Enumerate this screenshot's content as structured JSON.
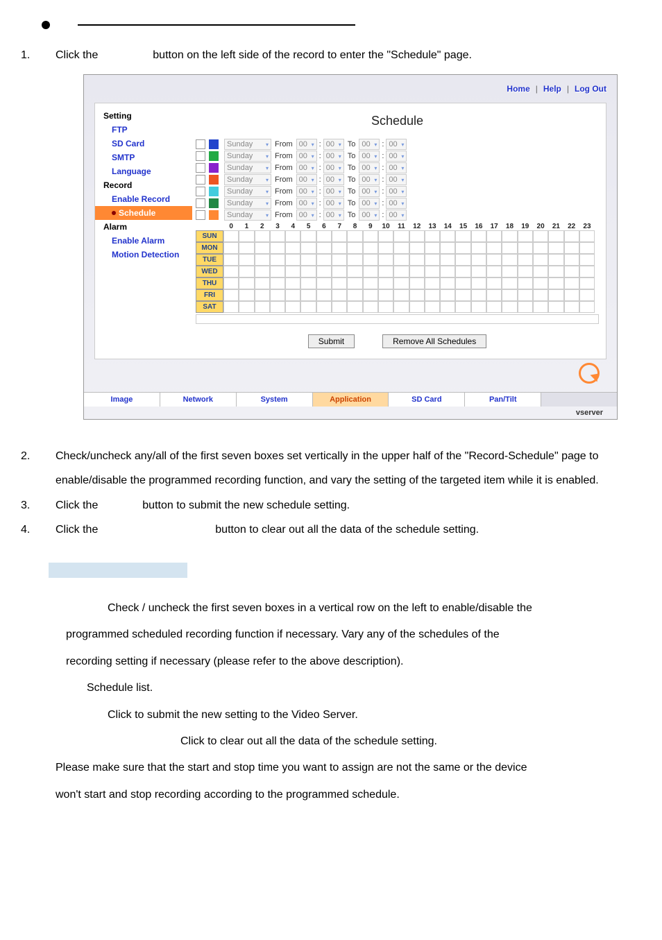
{
  "bullet_underline_width": 400,
  "instructions": {
    "step1": {
      "num": "1.",
      "text_a": "Click the",
      "text_b": "button on the left side of the record to enter the \"Schedule\" page."
    },
    "step2": {
      "num": "2.",
      "text": "Check/uncheck any/all of the first seven boxes set vertically in the upper half of the \"Record-Schedule\" page to enable/disable the programmed recording function, and vary the setting of the targeted item while it is enabled."
    },
    "step3": {
      "num": "3.",
      "text_a": "Click the",
      "text_b": "button to submit the new schedule setting."
    },
    "step4": {
      "num": "4.",
      "text_a": "Click the",
      "text_b": "button to clear out all the data of the schedule setting."
    }
  },
  "topbar": {
    "home": "Home",
    "help": "Help",
    "logout": "Log Out"
  },
  "sidebar": {
    "setting": "Setting",
    "ftp": "FTP",
    "sdcard": "SD Card",
    "smtp": "SMTP",
    "language": "Language",
    "record": "Record",
    "enable_record": "Enable Record",
    "schedule": "Schedule",
    "alarm": "Alarm",
    "enable_alarm": "Enable Alarm",
    "motion": "Motion Detection"
  },
  "panel_title": "Schedule",
  "schedule_rows": [
    {
      "color": "#2244cc"
    },
    {
      "color": "#22aa44"
    },
    {
      "color": "#8822cc"
    },
    {
      "color": "#ee5522"
    },
    {
      "color": "#44ccdd"
    },
    {
      "color": "#228844"
    },
    {
      "color": "#ff8833"
    }
  ],
  "row_defaults": {
    "day": "Sunday",
    "from": "From",
    "h": "00",
    "m": "00",
    "to": "To"
  },
  "hours": [
    "0",
    "1",
    "2",
    "3",
    "4",
    "5",
    "6",
    "7",
    "8",
    "9",
    "10",
    "11",
    "12",
    "13",
    "14",
    "15",
    "16",
    "17",
    "18",
    "19",
    "20",
    "21",
    "22",
    "23"
  ],
  "days": [
    "SUN",
    "MON",
    "TUE",
    "WED",
    "THU",
    "FRI",
    "SAT"
  ],
  "buttons": {
    "submit": "Submit",
    "remove": "Remove All Schedules"
  },
  "tabs": {
    "image": "Image",
    "network": "Network",
    "system": "System",
    "application": "Application",
    "sdcard": "SD Card",
    "pantilt": "Pan/Tilt"
  },
  "footer_brand": "vserver",
  "desc": {
    "p1": "Check / uncheck the first seven boxes in a vertical row on the left to enable/disable the",
    "p2": "programmed scheduled recording function if necessary. Vary any of the schedules of the",
    "p3": "recording setting if necessary (please refer to the above description).",
    "p4": "Schedule list.",
    "p5": "Click to submit the new setting to the Video Server.",
    "p6": "Click to clear out all the data of the schedule setting.",
    "p7": "Please make sure that the start and stop time you want to assign are not the same or the device",
    "p8": "won't start and stop recording according to the programmed schedule."
  }
}
